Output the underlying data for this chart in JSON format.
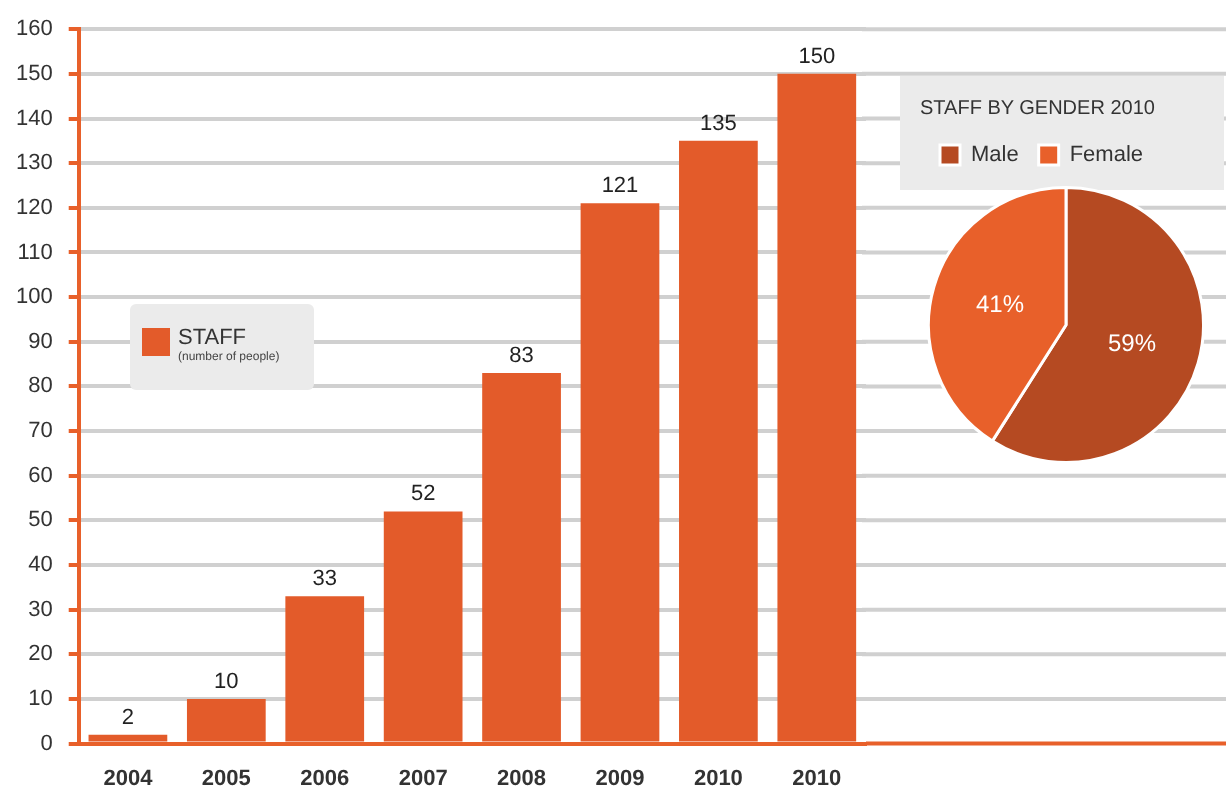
{
  "chart_data": [
    {
      "type": "bar",
      "categories": [
        "2004",
        "2005",
        "2006",
        "2007",
        "2008",
        "2009",
        "2010",
        "2010"
      ],
      "series": [
        {
          "name": "STAFF",
          "color": "#e35b2a",
          "values": [
            2,
            10,
            33,
            52,
            83,
            121,
            135,
            150
          ]
        }
      ],
      "annotations": [
        "(number of people)"
      ],
      "ylim": [
        0,
        160
      ],
      "yticks": [
        0,
        10,
        20,
        30,
        40,
        50,
        60,
        70,
        80,
        90,
        100,
        110,
        120,
        130,
        140,
        150,
        160
      ],
      "grid": "y",
      "legend": "left",
      "data_labels": true
    },
    {
      "type": "pie",
      "title": "STAFF BY GENDER 2010",
      "categories": [
        "Male",
        "Female"
      ],
      "values": [
        59,
        41
      ],
      "colors": [
        "#b54a22",
        "#e8602a"
      ],
      "legend": "top",
      "value_labels": [
        "59%",
        "41%"
      ]
    }
  ]
}
